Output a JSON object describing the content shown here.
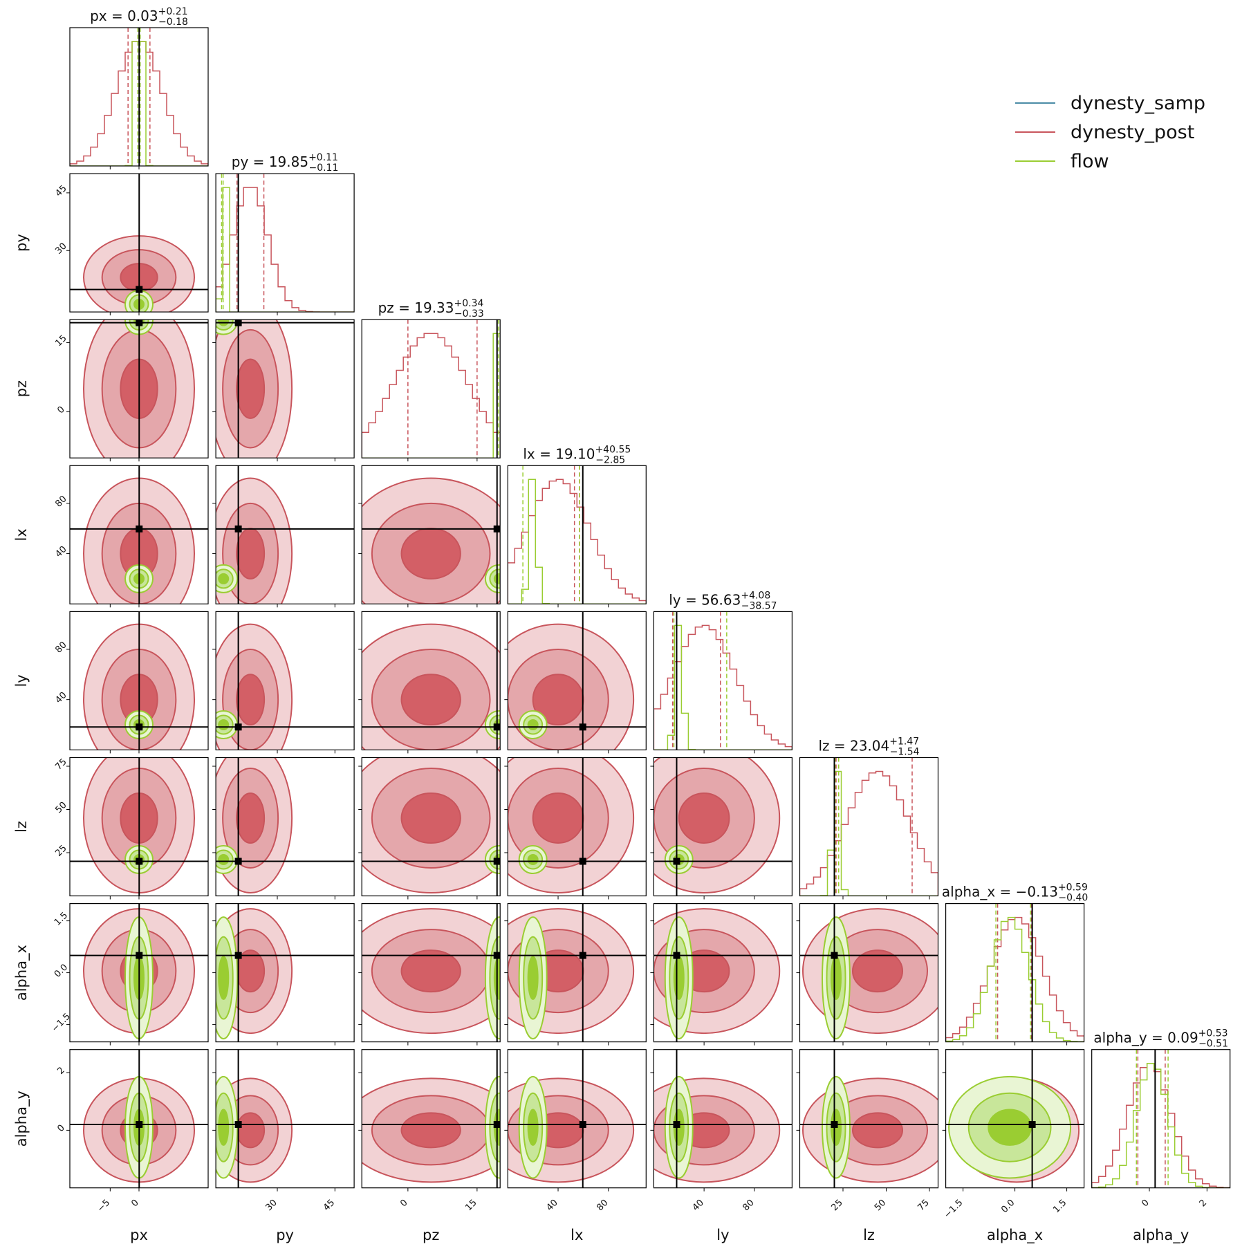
{
  "chart_data": {
    "type": "corner",
    "parameters": [
      "px",
      "py",
      "pz",
      "lx",
      "ly",
      "lz",
      "alpha_x",
      "alpha_y"
    ],
    "truths": [
      0.03,
      19.85,
      19.33,
      59.65,
      18.2,
      20.0,
      0.5,
      0.2
    ],
    "ranges": [
      [
        -12,
        12
      ],
      [
        14,
        50
      ],
      [
        -10,
        20
      ],
      [
        0,
        110
      ],
      [
        0,
        110
      ],
      [
        0,
        80
      ],
      [
        -2.0,
        2.0
      ],
      [
        -2.0,
        2.8
      ]
    ],
    "ticks": [
      [
        -5,
        0
      ],
      [
        30,
        45
      ],
      [
        0,
        15
      ],
      [
        40,
        80
      ],
      [
        40,
        80
      ],
      [
        25,
        50,
        75
      ],
      [
        -1.5,
        0.0,
        1.5
      ],
      [
        0,
        2
      ]
    ],
    "tick_labels": [
      [
        "−5",
        "0"
      ],
      [
        "30",
        "45"
      ],
      [
        "0",
        "15"
      ],
      [
        "40",
        "80"
      ],
      [
        "40",
        "80"
      ],
      [
        "25",
        "50",
        "75"
      ],
      [
        "−1.5",
        "0.0",
        "1.5"
      ],
      [
        "0",
        "2"
      ]
    ],
    "titles": [
      {
        "param": "px",
        "value": "0.03",
        "plus": "+0.21",
        "minus": "−0.18"
      },
      {
        "param": "py",
        "value": "19.85",
        "plus": "+0.11",
        "minus": "−0.11"
      },
      {
        "param": "pz",
        "value": "19.33",
        "plus": "+0.34",
        "minus": "−0.33"
      },
      {
        "param": "lx",
        "value": "19.10",
        "plus": "+40.55",
        "minus": "−2.85"
      },
      {
        "param": "ly",
        "value": "56.63",
        "plus": "+4.08",
        "minus": "−38.57"
      },
      {
        "param": "lz",
        "value": "23.04",
        "plus": "+1.47",
        "minus": "−1.54"
      },
      {
        "param": "alpha_x",
        "value": "−0.13",
        "plus": "+0.59",
        "minus": "−0.40"
      },
      {
        "param": "alpha_y",
        "value": "0.09",
        "plus": "+0.53",
        "minus": "−0.51"
      }
    ],
    "series": [
      {
        "name": "dynesty_samp",
        "color": "#4c8ca6"
      },
      {
        "name": "dynesty_post",
        "color": "#c8555c",
        "means": [
          0.0,
          23,
          5,
          40,
          40,
          45,
          0.05,
          0.0
        ],
        "sds": [
          4.0,
          4.5,
          8.0,
          25,
          25,
          18,
          0.75,
          0.75
        ],
        "quantiles": [
          [
            -1.9,
            1.9
          ],
          [
            19.5,
            26.5
          ],
          [
            0,
            15
          ],
          [
            53,
            57
          ],
          [
            15,
            53
          ],
          [
            21,
            65
          ],
          [
            -0.5,
            0.48
          ],
          [
            -0.4,
            0.55
          ]
        ]
      },
      {
        "name": "flow",
        "color": "#9acd32",
        "means": [
          0.0,
          16,
          19.8,
          20,
          20,
          21,
          -0.15,
          0.1
        ],
        "sds": [
          0.5,
          0.4,
          0.15,
          3,
          3,
          2,
          0.55,
          0.55
        ],
        "quantiles": [
          [
            -0.2,
            0.2
          ],
          [
            15.5,
            15.9
          ],
          [
            19.6,
            20.0
          ],
          [
            12,
            57
          ],
          [
            16,
            58
          ],
          [
            20.5,
            22.5
          ],
          [
            -0.55,
            0.45
          ],
          [
            -0.45,
            0.65
          ]
        ]
      }
    ],
    "legend_position": "top-right",
    "grid": false
  }
}
